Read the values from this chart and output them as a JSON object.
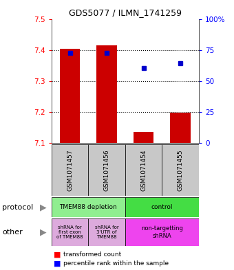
{
  "title": "GDS5077 / ILMN_1741259",
  "samples": [
    "GSM1071457",
    "GSM1071456",
    "GSM1071454",
    "GSM1071455"
  ],
  "bar_values": [
    7.404,
    7.414,
    7.135,
    7.197
  ],
  "bar_base": 7.1,
  "percentile_values": [
    7.39,
    7.39,
    7.342,
    7.358
  ],
  "bar_color": "#cc0000",
  "dot_color": "#0000cc",
  "ylim": [
    7.1,
    7.5
  ],
  "y_ticks": [
    7.1,
    7.2,
    7.3,
    7.4,
    7.5
  ],
  "y2_ticks": [
    0,
    25,
    50,
    75,
    100
  ],
  "y2_labels": [
    "0",
    "25",
    "50",
    "75",
    "100%"
  ],
  "grid_lines": [
    7.2,
    7.3,
    7.4
  ],
  "protocol_labels": [
    "TMEM88 depletion",
    "control"
  ],
  "protocol_colors": [
    "#90EE90",
    "#44DD44"
  ],
  "other_labels": [
    "shRNA for\nfirst exon\nof TMEM88",
    "shRNA for\n3'UTR of\nTMEM88",
    "non-targetting\nshRNA"
  ],
  "other_colors_left": "#DDAADD",
  "other_color_right": "#EE44EE",
  "sample_box_color": "#C8C8C8",
  "legend_red_label": "transformed count",
  "legend_blue_label": "percentile rank within the sample"
}
